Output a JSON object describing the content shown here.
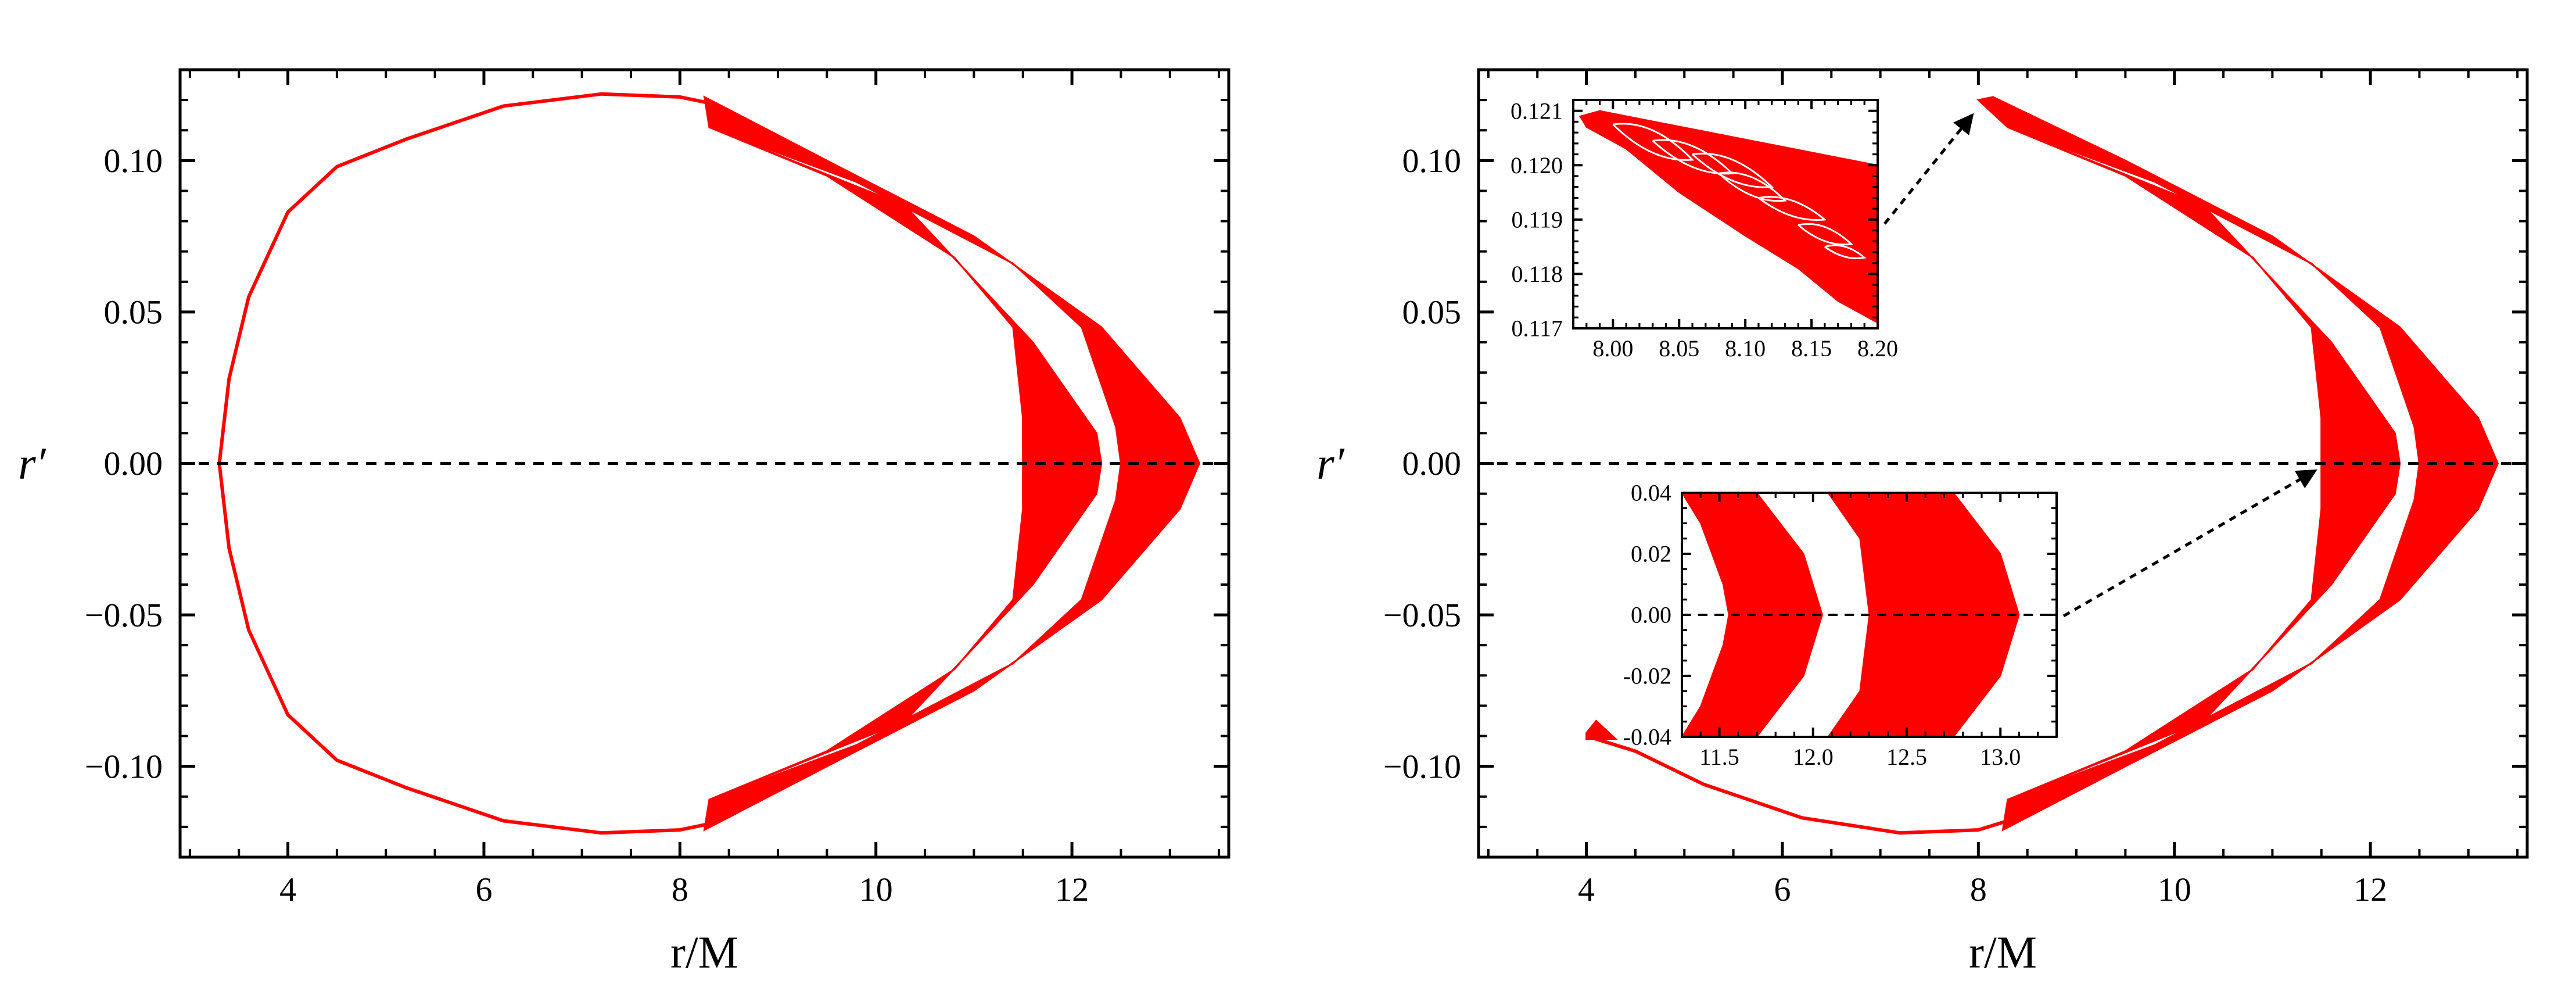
{
  "colors": {
    "series": "#ff0000",
    "axis": "#000000",
    "zero_line": "#000000",
    "arrow": "#000000"
  },
  "chart_data": [
    {
      "id": "left",
      "type": "scatter",
      "xlabel": "r/M",
      "ylabel": "r′",
      "xlim": [
        2.9,
        13.6
      ],
      "ylim": [
        -0.13,
        0.13
      ],
      "x_ticks": [
        4,
        6,
        8,
        10,
        12
      ],
      "x_tick_labels": [
        "4",
        "6",
        "8",
        "10",
        "12"
      ],
      "y_ticks": [
        0.1,
        0.05,
        0.0,
        -0.05,
        -0.1
      ],
      "y_tick_labels": [
        "0.10",
        "0.05",
        "0.00",
        "−0.05",
        "−0.10"
      ],
      "zero_line": true,
      "series": [
        {
          "orbit_curve": [
            [
              8.3,
              0.119
            ],
            [
              8.0,
              0.121
            ],
            [
              7.2,
              0.122
            ],
            [
              6.2,
              0.118
            ],
            [
              5.2,
              0.107
            ],
            [
              4.5,
              0.098
            ],
            [
              4.0,
              0.083
            ],
            [
              3.6,
              0.055
            ],
            [
              3.4,
              0.028
            ],
            [
              3.3,
              0.0
            ],
            [
              3.4,
              -0.028
            ],
            [
              3.6,
              -0.055
            ],
            [
              4.0,
              -0.083
            ],
            [
              4.5,
              -0.098
            ],
            [
              5.2,
              -0.107
            ],
            [
              6.2,
              -0.118
            ],
            [
              7.2,
              -0.122
            ],
            [
              8.0,
              -0.121
            ],
            [
              8.3,
              -0.119
            ]
          ],
          "outer_band": [
            [
              8.3,
              0.111
            ],
            [
              8.25,
              0.121
            ],
            [
              9.5,
              0.1
            ],
            [
              11.0,
              0.075
            ],
            [
              12.3,
              0.045
            ],
            [
              13.1,
              0.015
            ],
            [
              13.3,
              0.0
            ],
            [
              13.1,
              -0.015
            ],
            [
              12.3,
              -0.045
            ],
            [
              11.0,
              -0.075
            ],
            [
              9.5,
              -0.1
            ],
            [
              8.25,
              -0.121
            ],
            [
              8.3,
              -0.111
            ],
            [
              9.8,
              -0.093
            ],
            [
              11.4,
              -0.066
            ],
            [
              12.1,
              -0.045
            ],
            [
              12.45,
              -0.012
            ],
            [
              12.5,
              0.0
            ],
            [
              12.45,
              0.012
            ],
            [
              12.1,
              0.045
            ],
            [
              11.4,
              0.066
            ],
            [
              9.8,
              0.093
            ]
          ],
          "inner_band": [
            [
              8.3,
              0.111
            ],
            [
              10.3,
              0.085
            ],
            [
              11.6,
              0.04
            ],
            [
              12.25,
              0.01
            ],
            [
              12.3,
              0.0
            ],
            [
              12.25,
              -0.01
            ],
            [
              11.6,
              -0.04
            ],
            [
              10.3,
              -0.085
            ],
            [
              8.3,
              -0.111
            ],
            [
              9.5,
              -0.095
            ],
            [
              10.8,
              -0.068
            ],
            [
              11.4,
              -0.045
            ],
            [
              11.5,
              -0.015
            ],
            [
              11.5,
              0.0
            ],
            [
              11.5,
              0.015
            ],
            [
              11.4,
              0.045
            ],
            [
              10.8,
              0.068
            ],
            [
              9.5,
              0.095
            ]
          ]
        }
      ]
    },
    {
      "id": "right",
      "type": "scatter",
      "xlabel": "r/M",
      "ylabel": "r′",
      "xlim": [
        2.9,
        13.6
      ],
      "ylim": [
        -0.13,
        0.13
      ],
      "x_ticks": [
        4,
        6,
        8,
        10,
        12
      ],
      "x_tick_labels": [
        "4",
        "6",
        "8",
        "10",
        "12"
      ],
      "y_ticks": [
        0.1,
        0.05,
        0.0,
        -0.05,
        -0.1
      ],
      "y_tick_labels": [
        "0.10",
        "0.05",
        "0.00",
        "−0.05",
        "−0.10"
      ],
      "zero_line": true,
      "series": [
        {
          "orbit_curve": [
            [
              4.0,
              -0.09
            ],
            [
              4.5,
              -0.095
            ],
            [
              5.2,
              -0.106
            ],
            [
              6.2,
              -0.117
            ],
            [
              7.2,
              -0.122
            ],
            [
              8.0,
              -0.121
            ],
            [
              8.3,
              -0.118
            ]
          ],
          "tail_spike": [
            [
              4.0,
              -0.089
            ],
            [
              4.1,
              -0.085
            ],
            [
              4.3,
              -0.091
            ],
            [
              4.0,
              -0.091
            ]
          ],
          "outer_band": [
            [
              8.0,
              0.12
            ],
            [
              8.15,
              0.121
            ],
            [
              9.5,
              0.1
            ],
            [
              11.0,
              0.075
            ],
            [
              12.3,
              0.045
            ],
            [
              13.1,
              0.015
            ],
            [
              13.3,
              0.0
            ],
            [
              13.1,
              -0.015
            ],
            [
              12.3,
              -0.045
            ],
            [
              11.0,
              -0.075
            ],
            [
              9.5,
              -0.1
            ],
            [
              8.25,
              -0.121
            ],
            [
              8.3,
              -0.111
            ],
            [
              9.8,
              -0.093
            ],
            [
              11.4,
              -0.066
            ],
            [
              12.1,
              -0.045
            ],
            [
              12.45,
              -0.012
            ],
            [
              12.5,
              0.0
            ],
            [
              12.45,
              0.012
            ],
            [
              12.1,
              0.045
            ],
            [
              11.4,
              0.066
            ],
            [
              9.8,
              0.093
            ],
            [
              8.3,
              0.111
            ]
          ],
          "inner_band": [
            [
              8.3,
              0.111
            ],
            [
              10.3,
              0.085
            ],
            [
              11.6,
              0.04
            ],
            [
              12.25,
              0.01
            ],
            [
              12.3,
              0.0
            ],
            [
              12.25,
              -0.01
            ],
            [
              11.6,
              -0.04
            ],
            [
              10.3,
              -0.085
            ],
            [
              8.3,
              -0.111
            ],
            [
              9.5,
              -0.095
            ],
            [
              10.8,
              -0.068
            ],
            [
              11.4,
              -0.045
            ],
            [
              11.5,
              -0.015
            ],
            [
              11.5,
              0.0
            ],
            [
              11.5,
              0.015
            ],
            [
              11.4,
              0.045
            ],
            [
              10.8,
              0.068
            ],
            [
              9.5,
              0.095
            ]
          ]
        }
      ],
      "annotations": [
        {
          "type": "arrow",
          "from_inset": "inset_top",
          "to": [
            8.0,
            0.119
          ]
        },
        {
          "type": "arrow",
          "from_inset": "inset_bottom",
          "to": [
            11.5,
            0.0
          ]
        }
      ],
      "insets": [
        {
          "id": "inset_top",
          "type": "scatter",
          "xlim": [
            7.97,
            8.2
          ],
          "ylim": [
            0.117,
            0.1212
          ],
          "x_ticks": [
            8.0,
            8.05,
            8.1,
            8.15,
            8.2
          ],
          "x_tick_labels": [
            "8.00",
            "8.05",
            "8.10",
            "8.15",
            "8.20"
          ],
          "y_ticks": [
            0.121,
            0.12,
            0.119,
            0.118,
            0.117
          ],
          "y_tick_labels": [
            "0.121",
            "0.120",
            "0.119",
            "0.118",
            "0.117"
          ],
          "band": [
            [
              7.975,
              0.1209
            ],
            [
              7.99,
              0.121
            ],
            [
              8.2,
              0.12
            ],
            [
              8.2,
              0.1171
            ],
            [
              8.17,
              0.1175
            ],
            [
              8.14,
              0.1181
            ],
            [
              8.1,
              0.1187
            ],
            [
              8.05,
              0.1195
            ],
            [
              8.01,
              0.1203
            ],
            [
              7.98,
              0.1207
            ]
          ],
          "loops": [
            [
              8.1,
              0.1198
            ],
            [
              8.13,
              0.1195
            ],
            [
              8.16,
              0.1193
            ],
            [
              8.18,
              0.1186
            ],
            [
              8.16,
              0.1184
            ]
          ]
        },
        {
          "id": "inset_bottom",
          "type": "scatter",
          "xlim": [
            11.3,
            13.3
          ],
          "ylim": [
            -0.04,
            0.04
          ],
          "x_ticks": [
            11.5,
            12.0,
            12.5,
            13.0
          ],
          "x_tick_labels": [
            "11.5",
            "12.0",
            "12.5",
            "13.0"
          ],
          "y_ticks": [
            0.04,
            0.02,
            0.0,
            -0.02,
            -0.04
          ],
          "y_tick_labels": [
            "0.04",
            "0.02",
            "0.00",
            "-0.02",
            "-0.04"
          ],
          "zero_line": true,
          "band_left": [
            [
              11.3,
              0.04
            ],
            [
              11.7,
              0.04
            ],
            [
              11.95,
              0.02
            ],
            [
              12.05,
              0.0
            ],
            [
              11.95,
              -0.02
            ],
            [
              11.7,
              -0.04
            ],
            [
              11.3,
              -0.04
            ],
            [
              11.4,
              -0.03
            ],
            [
              11.52,
              -0.01
            ],
            [
              11.55,
              0.0
            ],
            [
              11.52,
              0.01
            ],
            [
              11.4,
              0.03
            ]
          ],
          "band_right": [
            [
              12.08,
              0.04
            ],
            [
              12.75,
              0.04
            ],
            [
              13.0,
              0.02
            ],
            [
              13.1,
              0.0
            ],
            [
              13.0,
              -0.02
            ],
            [
              12.75,
              -0.04
            ],
            [
              12.08,
              -0.04
            ],
            [
              12.25,
              -0.025
            ],
            [
              12.3,
              0.0
            ],
            [
              12.25,
              0.025
            ]
          ]
        }
      ]
    }
  ]
}
